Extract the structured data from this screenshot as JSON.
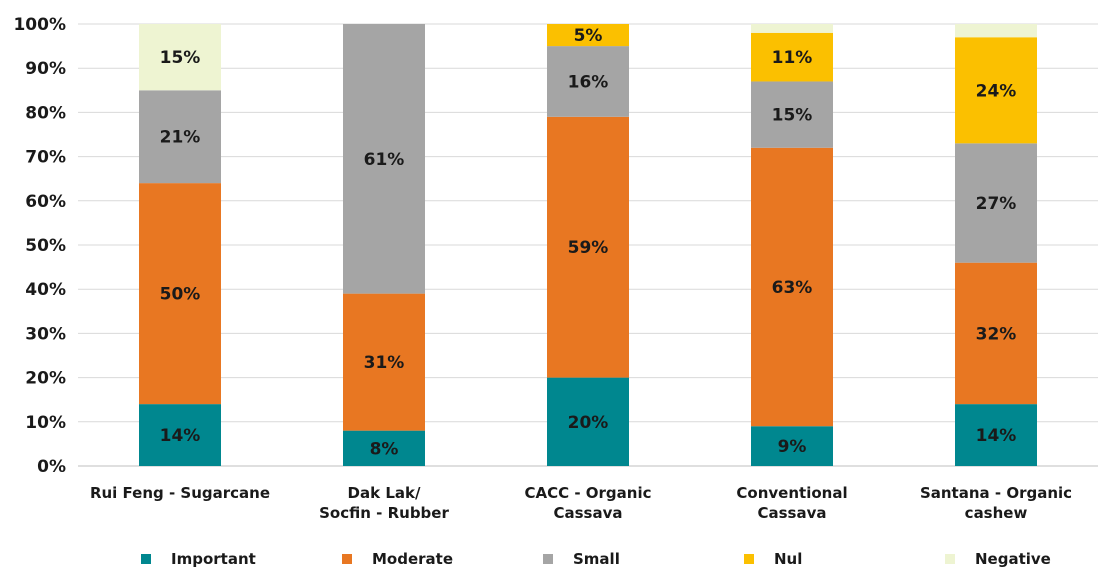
{
  "chart_data": {
    "type": "bar",
    "stacked": true,
    "categories": [
      "Rui Feng - Sugarcane",
      "Dak Lak/ Socfin - Rubber",
      "CACC - Organic Cassava",
      "Conventional Cassava",
      "Santana - Organic cashew"
    ],
    "category_lines": [
      [
        "Rui Feng - Sugarcane"
      ],
      [
        "Dak Lak/",
        "Socfin - Rubber"
      ],
      [
        "CACC - Organic",
        "Cassava"
      ],
      [
        "Conventional",
        "Cassava"
      ],
      [
        "Santana - Organic",
        "cashew"
      ]
    ],
    "series": [
      {
        "name": "Important",
        "color": "#00878f",
        "values": [
          14,
          8,
          20,
          9,
          14
        ],
        "labels": [
          "14%",
          "8%",
          "20%",
          "9%",
          "14%"
        ]
      },
      {
        "name": "Moderate",
        "color": "#e87722",
        "values": [
          50,
          31,
          59,
          63,
          32
        ],
        "labels": [
          "50%",
          "31%",
          "59%",
          "63%",
          "32%"
        ]
      },
      {
        "name": "Small",
        "color": "#a5a5a5",
        "values": [
          21,
          61,
          16,
          15,
          27
        ],
        "labels": [
          "21%",
          "61%",
          "16%",
          "15%",
          "27%"
        ]
      },
      {
        "name": "Nul",
        "color": "#fbc000",
        "values": [
          0,
          0,
          5,
          11,
          24
        ],
        "labels": [
          "",
          "",
          "5%",
          "11%",
          "24%"
        ]
      },
      {
        "name": "Negative",
        "color": "#eef4d2",
        "values": [
          15,
          0,
          0,
          2,
          3
        ],
        "labels": [
          "15%",
          "",
          "",
          "",
          ""
        ]
      }
    ],
    "ylim": [
      0,
      100
    ],
    "yticks": [
      "0%",
      "10%",
      "20%",
      "30%",
      "40%",
      "50%",
      "60%",
      "70%",
      "80%",
      "90%",
      "100%"
    ],
    "grid": true,
    "legend_position": "bottom",
    "title": "",
    "xlabel": "",
    "ylabel": ""
  }
}
